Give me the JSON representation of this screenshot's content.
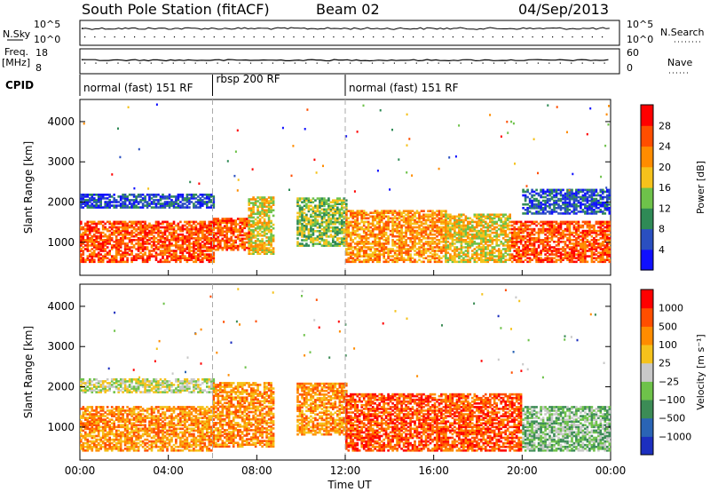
{
  "header": {
    "station": "South Pole Station (fitACF)",
    "beam": "Beam 02",
    "date": "04/Sep/2013"
  },
  "labels": {
    "nsky": "N.Sky",
    "nsearch": "N.Search",
    "freq1": "Freq.",
    "freq2": "[MHz]",
    "nave": "Nave",
    "cpid": "CPID",
    "nsky_ticks": [
      "10^5",
      "10^0"
    ],
    "nsearch_ticks": [
      "10^5",
      "10^0"
    ],
    "freq_ticks": [
      "18",
      "8"
    ],
    "nave_ticks": [
      "60",
      "0"
    ]
  },
  "cpid_segments": [
    {
      "label": "normal (fast) 151 RF",
      "start": 0,
      "end": 6
    },
    {
      "label": "rbsp 200 RF",
      "start": 6,
      "end": 12
    },
    {
      "label": "normal (fast) 151 RF",
      "start": 12,
      "end": 24
    }
  ],
  "chart_data": [
    {
      "type": "heatmap",
      "name": "power",
      "xlabel": "Time UT",
      "ylabel": "Slant Range [km]",
      "xlim": [
        0,
        24
      ],
      "ylim": [
        180,
        4550
      ],
      "x_ticks": [
        "00:00",
        "04:00",
        "08:00",
        "12:00",
        "16:00",
        "20:00",
        "00:00"
      ],
      "y_ticks": [
        1000,
        2000,
        3000,
        4000
      ],
      "colorbar": {
        "label": "Power [dB]",
        "ticks": [
          4,
          8,
          12,
          16,
          20,
          24,
          28
        ],
        "colors": [
          "#1010ff",
          "#2a4fc0",
          "#2f8a56",
          "#6ec24a",
          "#f5c21b",
          "#ff8c00",
          "#ff4e00",
          "#ff0000"
        ]
      },
      "vertical_markers": [
        6,
        12
      ],
      "bands": [
        {
          "t0": 0,
          "t1": 6,
          "r0": 500,
          "r1": 1500,
          "level": 6
        },
        {
          "t0": 6,
          "t1": 7.6,
          "r0": 800,
          "r1": 1600,
          "level": 6
        },
        {
          "t0": 7.6,
          "t1": 8.7,
          "r0": 700,
          "r1": 2100,
          "level": 4
        },
        {
          "t0": 9.8,
          "t1": 12,
          "r0": 900,
          "r1": 2100,
          "level": 3
        },
        {
          "t0": 12,
          "t1": 16.5,
          "r0": 500,
          "r1": 1800,
          "level": 5
        },
        {
          "t0": 16.5,
          "t1": 19.5,
          "r0": 500,
          "r1": 1700,
          "level": 4
        },
        {
          "t0": 19.5,
          "t1": 24,
          "r0": 500,
          "r1": 1500,
          "level": 6
        },
        {
          "t0": 0,
          "t1": 6,
          "r0": 1850,
          "r1": 2200,
          "level": 1
        },
        {
          "t0": 20,
          "t1": 24,
          "r0": 1700,
          "r1": 2300,
          "level": 1
        }
      ]
    },
    {
      "type": "heatmap",
      "name": "velocity",
      "xlabel": "Time UT",
      "ylabel": "Slant Range [km]",
      "xlim": [
        0,
        24
      ],
      "ylim": [
        180,
        4550
      ],
      "x_ticks": [
        "00:00",
        "04:00",
        "08:00",
        "12:00",
        "16:00",
        "20:00",
        "00:00"
      ],
      "y_ticks": [
        1000,
        2000,
        3000,
        4000
      ],
      "colorbar": {
        "label": "Velocity [m s⁻¹]",
        "ticks": [
          "1000",
          "500",
          "100",
          "25",
          "−25",
          "−100",
          "−500",
          "−1000"
        ],
        "colors": [
          "#1c2fbf",
          "#2a64b5",
          "#3c8c56",
          "#6ec24a",
          "#c8c8c8",
          "#f5c21b",
          "#ff8c00",
          "#ff4e00",
          "#ff0000"
        ]
      },
      "vertical_markers": [
        6,
        12
      ],
      "bands": [
        {
          "t0": 0,
          "t1": 6,
          "r0": 400,
          "r1": 1500,
          "level": 6
        },
        {
          "t0": 6,
          "t1": 8.7,
          "r0": 500,
          "r1": 2100,
          "level": 6
        },
        {
          "t0": 9.8,
          "t1": 12,
          "r0": 800,
          "r1": 2100,
          "level": 6
        },
        {
          "t0": 12,
          "t1": 20,
          "r0": 400,
          "r1": 1800,
          "level": 7
        },
        {
          "t0": 20,
          "t1": 24,
          "r0": 400,
          "r1": 1500,
          "level": 3
        },
        {
          "t0": 0,
          "t1": 6,
          "r0": 1850,
          "r1": 2200,
          "level": 4
        }
      ]
    }
  ]
}
